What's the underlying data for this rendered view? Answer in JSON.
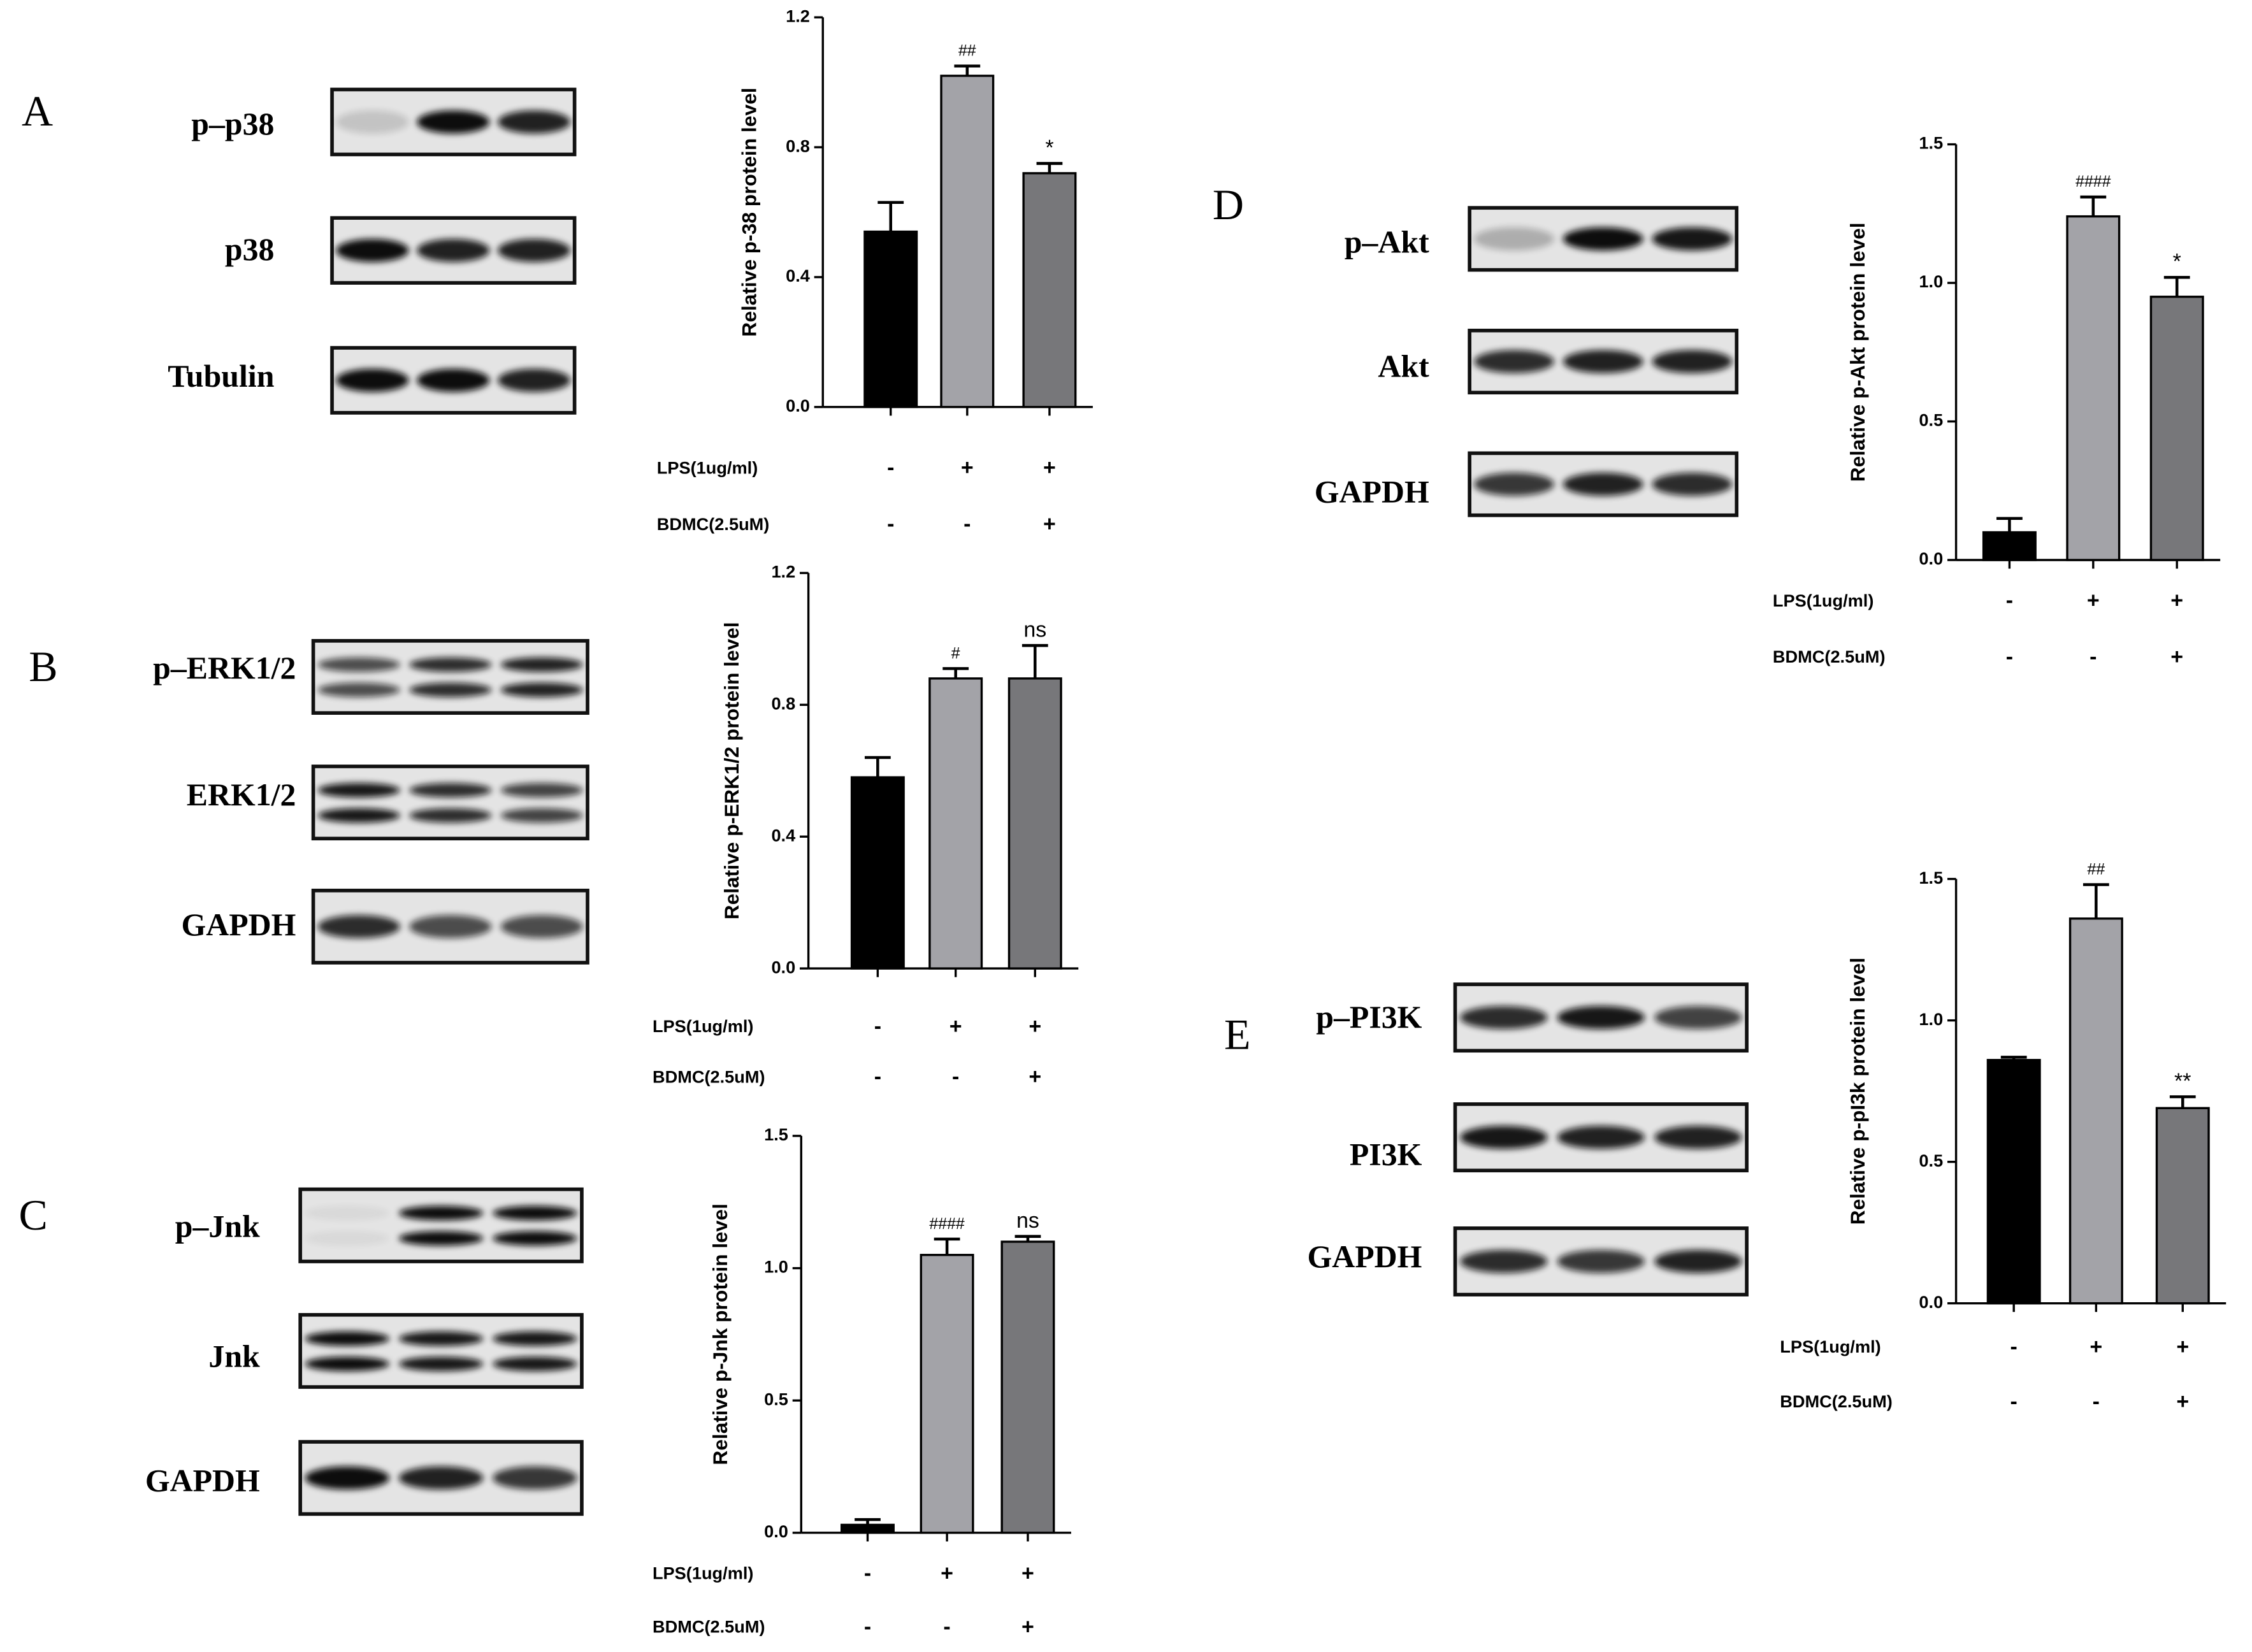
{
  "chart_data": [
    {
      "type": "bar",
      "ylabel": "Relative p-38 protein level",
      "values": [
        0.54,
        1.02,
        0.72
      ],
      "errors": [
        0.09,
        0.03,
        0.03
      ],
      "annotations": [
        null,
        "##",
        "*"
      ],
      "colors": [
        "#000000",
        "#a3a3a8",
        "#77777a"
      ],
      "ylim": [
        0,
        1.2
      ],
      "yticks": [
        {
          "value": 0,
          "label": "0.0"
        },
        0.4,
        0.8,
        1.2
      ],
      "conditions": [
        {
          "name": "LPS(1ug/ml)",
          "values": [
            "-",
            "+",
            "+"
          ]
        },
        {
          "name": "BDMC(2.5uM)",
          "values": [
            "-",
            "-",
            "+"
          ]
        }
      ]
    },
    {
      "type": "bar",
      "ylabel": "Relative p-ERK1/2 protein level",
      "values": [
        0.58,
        0.88,
        0.88
      ],
      "errors": [
        0.06,
        0.03,
        0.1
      ],
      "annotations": [
        null,
        "#",
        "ns"
      ],
      "colors": [
        "#000000",
        "#a3a3a8",
        "#77777a"
      ],
      "ylim": [
        0,
        1.2
      ],
      "yticks": [
        {
          "value": 0,
          "label": "0.0"
        },
        0.4,
        0.8,
        1.2
      ],
      "conditions": [
        {
          "name": "LPS(1ug/ml)",
          "values": [
            "-",
            "+",
            "+"
          ]
        },
        {
          "name": "BDMC(2.5uM)",
          "values": [
            "-",
            "-",
            "+"
          ]
        }
      ]
    },
    {
      "type": "bar",
      "ylabel": "Relative p-Jnk protein level",
      "values": [
        0.03,
        1.05,
        1.1
      ],
      "errors": [
        0.02,
        0.06,
        0.02
      ],
      "annotations": [
        null,
        "####",
        "ns"
      ],
      "colors": [
        "#000000",
        "#a3a3a8",
        "#77777a"
      ],
      "ylim": [
        0,
        1.5
      ],
      "yticks": [
        {
          "value": 0,
          "label": "0.0"
        },
        0.5,
        {
          "value": 1,
          "label": "1.0"
        },
        1.5
      ],
      "conditions": [
        {
          "name": "LPS(1ug/ml)",
          "values": [
            "-",
            "+",
            "+"
          ]
        },
        {
          "name": "BDMC(2.5uM)",
          "values": [
            "-",
            "-",
            "+"
          ]
        }
      ]
    },
    {
      "type": "bar",
      "ylabel": "Relative p-Akt protein level",
      "values": [
        0.1,
        1.24,
        0.95
      ],
      "errors": [
        0.05,
        0.07,
        0.07
      ],
      "annotations": [
        null,
        "####",
        "*"
      ],
      "colors": [
        "#000000",
        "#a3a3a8",
        "#77777a"
      ],
      "ylim": [
        0,
        1.5
      ],
      "yticks": [
        {
          "value": 0,
          "label": "0.0"
        },
        0.5,
        {
          "value": 1,
          "label": "1.0"
        },
        1.5
      ],
      "conditions": [
        {
          "name": "LPS(1ug/ml)",
          "values": [
            "-",
            "+",
            "+"
          ]
        },
        {
          "name": "BDMC(2.5uM)",
          "values": [
            "-",
            "-",
            "+"
          ]
        }
      ]
    },
    {
      "type": "bar",
      "ylabel": "Relative p-pI3k protein level",
      "values": [
        0.86,
        1.36,
        0.69
      ],
      "errors": [
        0.01,
        0.12,
        0.04
      ],
      "annotations": [
        null,
        "##",
        "**"
      ],
      "colors": [
        "#000000",
        "#a3a3a8",
        "#77777a"
      ],
      "ylim": [
        0,
        1.5
      ],
      "yticks": [
        {
          "value": 0,
          "label": "0.0"
        },
        0.5,
        {
          "value": 1,
          "label": "1.0"
        },
        1.5
      ],
      "conditions": [
        {
          "name": "LPS(1ug/ml)",
          "values": [
            "-",
            "+",
            "+"
          ]
        },
        {
          "name": "BDMC(2.5uM)",
          "values": [
            "-",
            "-",
            "+"
          ]
        }
      ]
    }
  ],
  "panels": [
    {
      "letter": "A",
      "blots": [
        "p–p38",
        "p38",
        "Tubulin"
      ]
    },
    {
      "letter": "B",
      "blots": [
        "p–ERK1/2",
        "ERK1/2",
        "GAPDH"
      ]
    },
    {
      "letter": "C",
      "blots": [
        "p–Jnk",
        "Jnk",
        "GAPDH"
      ]
    },
    {
      "letter": "D",
      "blots": [
        "p–Akt",
        "Akt",
        "GAPDH"
      ]
    },
    {
      "letter": "E",
      "blots": [
        "p–PI3K",
        "PI3K",
        "GAPDH"
      ]
    }
  ]
}
